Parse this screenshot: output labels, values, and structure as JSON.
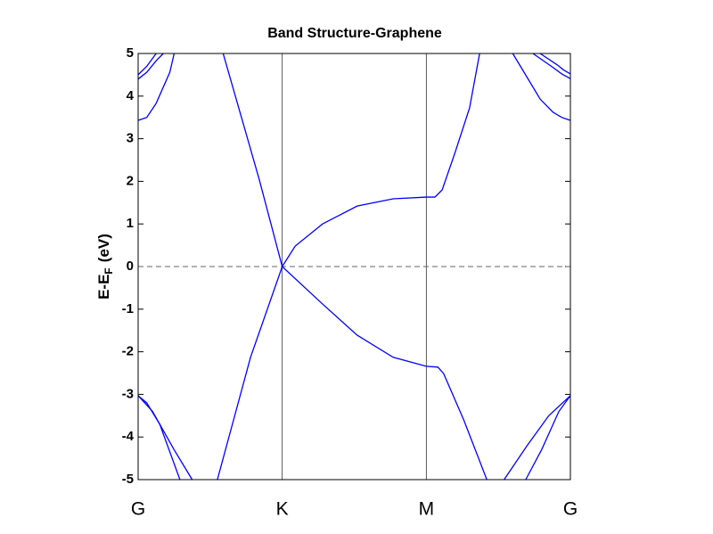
{
  "chart_data": {
    "type": "line",
    "title": "Band Structure-Graphene",
    "ylabel": {
      "main": "E-E",
      "sub": "F",
      "unit": "(eV)"
    },
    "xlim": [
      0,
      3
    ],
    "xticks": [
      {
        "value": 0,
        "label": "G"
      },
      {
        "value": 1,
        "label": "K"
      },
      {
        "value": 2,
        "label": "M"
      },
      {
        "value": 3,
        "label": "G"
      }
    ],
    "ylim": [
      -5,
      5
    ],
    "yticks": [
      -5,
      -4,
      -3,
      -2,
      -1,
      0,
      1,
      2,
      3,
      4,
      5
    ],
    "x_grid": true,
    "reference_line": {
      "y": 0,
      "style": "dashed"
    },
    "series": [
      {
        "color": "#0000ff",
        "x": [
          0.59,
          0.84,
          1,
          1.09,
          1.28,
          1.52,
          1.77,
          2,
          2.06,
          2.11,
          2.2,
          2.3,
          2.37
        ],
        "values": [
          5,
          2.05,
          0,
          0.48,
          1.0,
          1.42,
          1.59,
          1.63,
          1.63,
          1.8,
          2.68,
          3.72,
          5
        ]
      },
      {
        "color": "#0000ff",
        "x": [
          0.55,
          0.78,
          1,
          1.28,
          1.52,
          1.77,
          2,
          2.08,
          2.12,
          2.26,
          2.42
        ],
        "values": [
          -5,
          -2.13,
          0,
          -0.88,
          -1.61,
          -2.13,
          -2.34,
          -2.36,
          -2.51,
          -3.6,
          -5
        ]
      },
      {
        "color": "#0000ff",
        "x": [
          0,
          0.06,
          0.125,
          0.22,
          0.25
        ],
        "values": [
          3.43,
          3.5,
          3.83,
          4.56,
          5
        ]
      },
      {
        "color": "#0000ff",
        "x": [
          0,
          0.06,
          0.13,
          0.175
        ],
        "values": [
          4.4,
          4.56,
          4.85,
          5
        ]
      },
      {
        "color": "#0000ff",
        "x": [
          0,
          0.06,
          0.125
        ],
        "values": [
          4.5,
          4.7,
          5
        ]
      },
      {
        "color": "#0000ff",
        "x": [
          2.6,
          2.79,
          2.88,
          2.94,
          3
        ],
        "values": [
          5,
          3.93,
          3.62,
          3.5,
          3.43
        ]
      },
      {
        "color": "#0000ff",
        "x": [
          2.74,
          2.88,
          2.94,
          3
        ],
        "values": [
          5,
          4.67,
          4.52,
          4.41
        ]
      },
      {
        "color": "#0000ff",
        "x": [
          2.79,
          2.91,
          2.95,
          3
        ],
        "values": [
          5,
          4.73,
          4.62,
          4.52
        ]
      },
      {
        "color": "#0000ff",
        "x": [
          0,
          0.06,
          0.15,
          0.29
        ],
        "values": [
          -3.03,
          -3.2,
          -3.7,
          -5
        ]
      },
      {
        "color": "#0000ff",
        "x": [
          0,
          0.1,
          0.25,
          0.375
        ],
        "values": [
          -3.03,
          -3.4,
          -4.3,
          -5
        ]
      },
      {
        "color": "#0000ff",
        "x": [
          2.54,
          2.7,
          2.85,
          3
        ],
        "values": [
          -5,
          -4.2,
          -3.5,
          -3.03
        ]
      },
      {
        "color": "#0000ff",
        "x": [
          2.69,
          2.8,
          2.92,
          3
        ],
        "values": [
          -5,
          -4.3,
          -3.4,
          -3.03
        ]
      }
    ]
  }
}
